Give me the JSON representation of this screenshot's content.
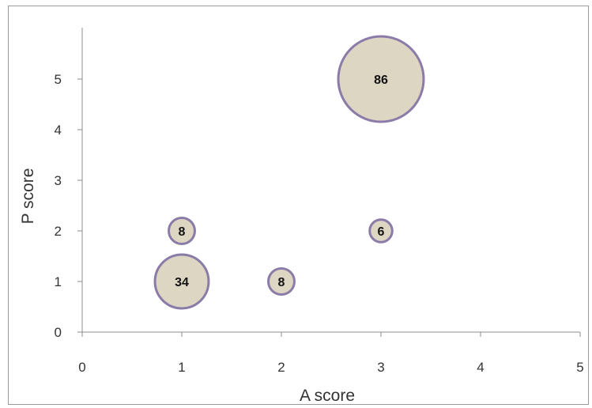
{
  "chart_data": {
    "type": "scatter",
    "xlabel": "A score",
    "ylabel": "P score",
    "xlim": [
      0,
      5
    ],
    "ylim": [
      0,
      6
    ],
    "xticks": [
      0,
      1,
      2,
      3,
      4,
      5
    ],
    "yticks": [
      0,
      1,
      2,
      3,
      4,
      5
    ],
    "grid": false,
    "legend": "none",
    "points": [
      {
        "x": 1,
        "y": 1,
        "size": 34,
        "label": "34"
      },
      {
        "x": 1,
        "y": 2,
        "size": 8,
        "label": "8"
      },
      {
        "x": 2,
        "y": 1,
        "size": 8,
        "label": "8"
      },
      {
        "x": 3,
        "y": 2,
        "size": 6,
        "label": "6"
      },
      {
        "x": 3,
        "y": 5,
        "size": 86,
        "label": "86"
      }
    ],
    "colors": {
      "bubble_fill": "#dcd6c2",
      "bubble_stroke": "#8a7ba8",
      "axis": "#8c8c8c"
    }
  }
}
